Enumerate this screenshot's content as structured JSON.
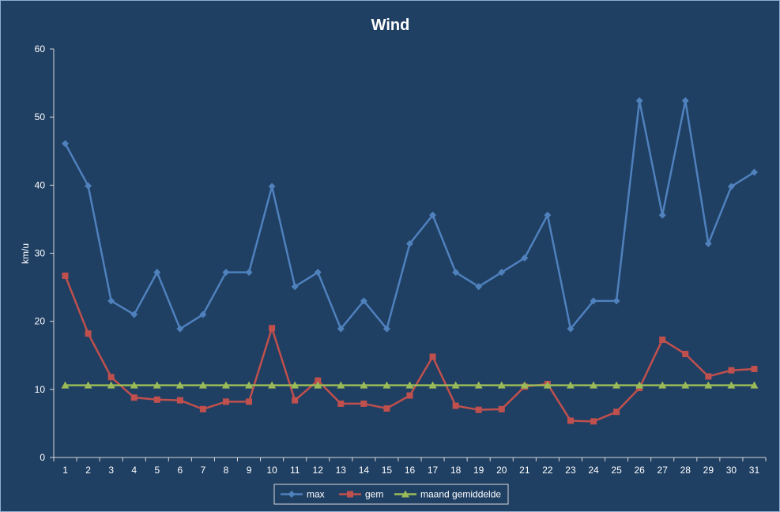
{
  "chart_data": {
    "type": "line",
    "title": "Wind",
    "xlabel": "",
    "ylabel": "km/u",
    "ylim": [
      0,
      60
    ],
    "yticks": [
      0,
      10,
      20,
      30,
      40,
      50,
      60
    ],
    "grid": false,
    "legend_position": "bottom",
    "categories": [
      "1",
      "2",
      "3",
      "4",
      "5",
      "6",
      "7",
      "8",
      "9",
      "10",
      "11",
      "12",
      "13",
      "14",
      "15",
      "16",
      "17",
      "18",
      "19",
      "20",
      "21",
      "22",
      "23",
      "24",
      "25",
      "26",
      "27",
      "28",
      "29",
      "30",
      "31"
    ],
    "series": [
      {
        "name": "max",
        "color": "#4f81bd",
        "marker": "diamond",
        "values": [
          46.1,
          39.9,
          23.0,
          21.0,
          27.2,
          18.9,
          21.0,
          27.2,
          27.2,
          39.8,
          25.1,
          27.2,
          18.9,
          23.0,
          18.9,
          31.4,
          35.6,
          27.2,
          25.1,
          27.2,
          29.3,
          35.6,
          18.9,
          23.0,
          23.0,
          52.4,
          35.6,
          52.4,
          31.4,
          39.8,
          41.9
        ]
      },
      {
        "name": "gem",
        "color": "#c0504d",
        "marker": "square",
        "values": [
          26.7,
          18.2,
          11.8,
          8.8,
          8.5,
          8.4,
          7.1,
          8.2,
          8.2,
          19.0,
          8.4,
          11.3,
          7.9,
          7.9,
          7.2,
          9.1,
          14.8,
          7.6,
          7.0,
          7.1,
          10.4,
          10.8,
          5.4,
          5.3,
          6.7,
          10.2,
          17.3,
          15.2,
          11.9,
          12.8,
          13.0
        ]
      },
      {
        "name": "maand gemiddelde",
        "color": "#9bbb59",
        "marker": "triangle",
        "values": [
          10.6,
          10.6,
          10.6,
          10.6,
          10.6,
          10.6,
          10.6,
          10.6,
          10.6,
          10.6,
          10.6,
          10.6,
          10.6,
          10.6,
          10.6,
          10.6,
          10.6,
          10.6,
          10.6,
          10.6,
          10.6,
          10.6,
          10.6,
          10.6,
          10.6,
          10.6,
          10.6,
          10.6,
          10.6,
          10.6,
          10.6
        ]
      }
    ]
  },
  "colors": {
    "background": "#1f3f63",
    "border": "#8eaed0",
    "axis": "#d9d9d9",
    "text": "#ffffff"
  }
}
